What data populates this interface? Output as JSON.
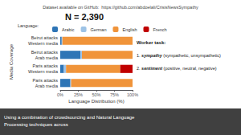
{
  "chart_data": {
    "type": "bar",
    "orientation": "horizontal",
    "stacked": true,
    "title": "N = 2,390",
    "subtitle": "Dataset available on GitHub:  https://github.com/abdoelali/CrisisNewsSympathy",
    "categories": [
      "Beirut attacks\nWestern media",
      "Beirut attacks\nArab media",
      "Paris attacks\nWestern media",
      "Paris attacks\nArab media"
    ],
    "series": [
      {
        "name": "Arabic",
        "color": "#2e75b6",
        "values": [
          2,
          28,
          5,
          14
        ]
      },
      {
        "name": "German",
        "color": "#9dc3e6",
        "values": [
          1,
          2,
          3,
          1
        ]
      },
      {
        "name": "English",
        "color": "#f0943a",
        "values": [
          97,
          70,
          75,
          85
        ]
      },
      {
        "name": "French",
        "color": "#c00000",
        "values": [
          0,
          0,
          17,
          0
        ]
      }
    ],
    "xlabel": "Language Distribution (%)",
    "ylabel": "Media Coverage",
    "xlim": [
      0,
      100
    ],
    "xticks": [
      {
        "value": 0,
        "label": "0%"
      },
      {
        "value": 25,
        "label": "25%"
      },
      {
        "value": 50,
        "label": "50%"
      },
      {
        "value": 75,
        "label": "75%"
      },
      {
        "value": 100,
        "label": "100%"
      }
    ],
    "grid": false,
    "legend": "top",
    "annotations": [
      "Language:",
      "Worker task:",
      "1. sympathy (sympathetic, unsympathetic)",
      "2. sentiment (positive, neutral, negative)",
      "Using a combination of crowdsourcing and Natural Language\nProcessing techniques across"
    ]
  }
}
